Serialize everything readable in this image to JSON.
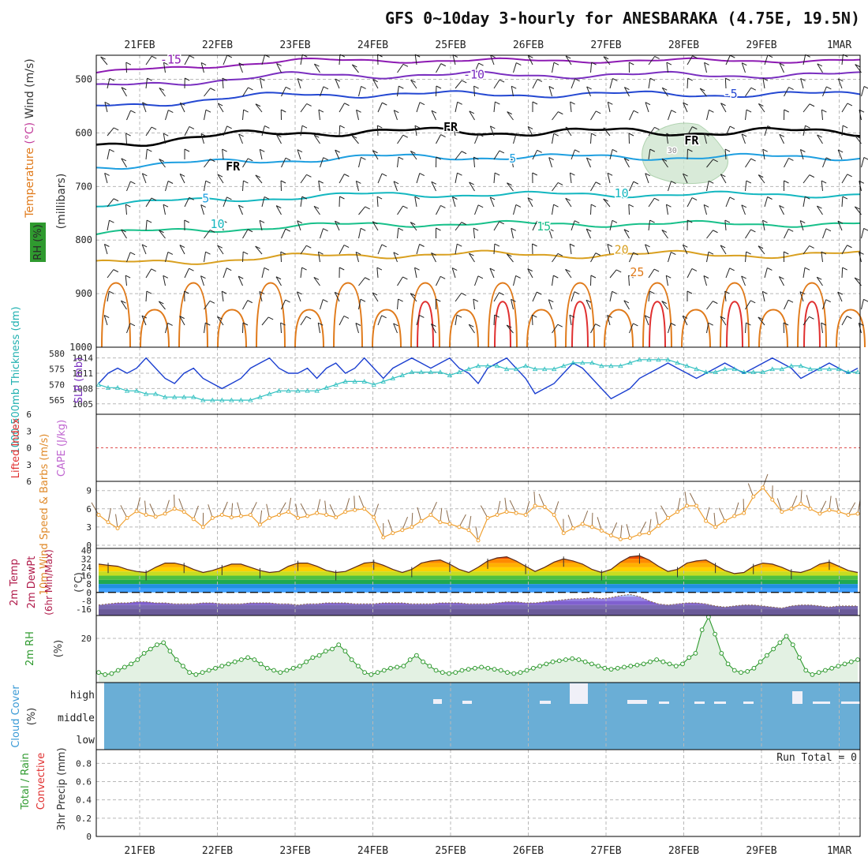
{
  "title": "GFS 0~10day 3-hourly for ANESBARAKA (4.75E, 19.5N)",
  "colors": {
    "temp_minus15": "#8d1ab3",
    "temp_minus10": "#7a2fc0",
    "temp_minus5": "#2448d2",
    "temp_5": "#1e9fe0",
    "temp_10": "#14b7c0",
    "temp_15": "#18c08a",
    "temp_20": "#d9a020",
    "temp_25": "#e07a1a",
    "temp_30": "#e03030",
    "rh_fill": "#cfe5cf",
    "slp_line": "#1b3fd0",
    "thickness_line": "#30c0c0",
    "wind_speed_line": "#f0a030",
    "cloud_fill": "#6aaed6",
    "rh2m_line": "#2f9a2f",
    "rh2m_fill": "#e3f1e3",
    "cape_zero_line": "#e05050"
  },
  "chart_data": [
    {
      "panel": "upper-air",
      "type": "contour",
      "title": "GFS 0~10day 3-hourly for ANESBARAKA (4.75E, 19.5N)",
      "ylabel_parts": [
        {
          "text": "RH (%)",
          "color": "#2a2a2a"
        },
        {
          "text": "Temperature",
          "color": "#e07a1a"
        },
        {
          "text": "(°C)",
          "color": "#c23c9a"
        },
        {
          "text": "Wind (m/s)",
          "color": "#333333"
        }
      ],
      "y_units_label": "(millibars)",
      "yticks": [
        500,
        600,
        700,
        800,
        900,
        1000
      ],
      "ylim": [
        1000,
        450
      ],
      "x_categories": [
        "21FEB",
        "22FEB",
        "23FEB",
        "24FEB",
        "25FEB",
        "26FEB",
        "27FEB",
        "28FEB",
        "29FEB",
        "1MAR"
      ],
      "contour_labels": [
        {
          "text": "-15",
          "level": -15,
          "day": 0.4,
          "p": 463
        },
        {
          "text": "-10",
          "level": -10,
          "day": 4.3,
          "p": 491
        },
        {
          "text": "-5",
          "level": -5,
          "day": 7.6,
          "p": 527
        },
        {
          "text": "FR",
          "level": 0,
          "day": 4.0,
          "p": 589
        },
        {
          "text": "FR",
          "level": 0,
          "day": 1.2,
          "p": 663
        },
        {
          "text": "FR",
          "level": 0,
          "day": 7.1,
          "p": 614
        },
        {
          "text": "5",
          "level": 5,
          "day": 4.8,
          "p": 648
        },
        {
          "text": "5",
          "level": 5,
          "day": 0.85,
          "p": 722
        },
        {
          "text": "10",
          "level": 10,
          "day": 6.2,
          "p": 713
        },
        {
          "text": "10",
          "level": 10,
          "day": 1.0,
          "p": 770
        },
        {
          "text": "15",
          "level": 15,
          "day": 5.2,
          "p": 775
        },
        {
          "text": "20",
          "level": 20,
          "day": 6.2,
          "p": 818
        },
        {
          "text": "25",
          "level": 25,
          "day": 6.4,
          "p": 860
        },
        {
          "text": "30",
          "level": 30,
          "day": 6.85,
          "p": 630
        }
      ]
    },
    {
      "panel": "slp-thickness",
      "type": "line",
      "left_ylabel": "1000-500mb Thickness (dm)",
      "right_ylabel": "SLP (mb)",
      "left_yticks": [
        565,
        570,
        575,
        580
      ],
      "right_yticks": [
        1005,
        1008,
        1011,
        1014
      ],
      "series": [
        {
          "name": "SLP (mb)",
          "values": [
            1009,
            1011,
            1012,
            1011,
            1012,
            1014,
            1012,
            1010,
            1009,
            1011,
            1012,
            1010,
            1009,
            1008,
            1009,
            1010,
            1012,
            1013,
            1014,
            1012,
            1011,
            1011,
            1012,
            1010,
            1012,
            1013,
            1011,
            1012,
            1014,
            1012,
            1010,
            1012,
            1013,
            1014,
            1013,
            1012,
            1013,
            1014,
            1012,
            1011,
            1009,
            1012,
            1013,
            1014,
            1012,
            1010,
            1007,
            1008,
            1009,
            1011,
            1013,
            1012,
            1010,
            1008,
            1006,
            1007,
            1008,
            1010,
            1011,
            1012,
            1013,
            1012,
            1011,
            1010,
            1011,
            1012,
            1013,
            1012,
            1011,
            1012,
            1013,
            1014,
            1013,
            1012,
            1010,
            1011,
            1012,
            1013,
            1012,
            1011,
            1012
          ]
        },
        {
          "name": "1000-500mb Thickness (dm)",
          "values": [
            570,
            569,
            569,
            568,
            568,
            567,
            567,
            566,
            566,
            566,
            566,
            565,
            565,
            565,
            565,
            565,
            565,
            566,
            567,
            568,
            568,
            568,
            568,
            568,
            569,
            570,
            571,
            571,
            571,
            570,
            571,
            572,
            573,
            574,
            574,
            574,
            574,
            573,
            574,
            575,
            576,
            576,
            576,
            575,
            575,
            576,
            575,
            575,
            575,
            576,
            577,
            577,
            577,
            576,
            576,
            576,
            577,
            578,
            578,
            578,
            578,
            577,
            576,
            575,
            574,
            574,
            575,
            575,
            574,
            574,
            574,
            575,
            575,
            576,
            576,
            575,
            575,
            575,
            575,
            574,
            574
          ]
        }
      ]
    },
    {
      "panel": "cape-li",
      "type": "line",
      "left_ylabel": "Lifted Index",
      "right_ylabel": "CAPE (J/kg)",
      "yticks": [
        -6,
        -3,
        0,
        3,
        6
      ],
      "ylim": [
        -6,
        6
      ],
      "series": [
        {
          "name": "Lifted Index",
          "values": [
            0
          ]
        }
      ]
    },
    {
      "panel": "10m-wind",
      "type": "line",
      "ylabel": "10m Wind Speed & Barbs (m/s)",
      "yticks": [
        0,
        3,
        6,
        9
      ],
      "ylim": [
        0,
        10
      ],
      "series": [
        {
          "name": "10m Wind Speed",
          "values": [
            5.0,
            3.8,
            2.8,
            4.5,
            5.6,
            5.0,
            4.7,
            5.2,
            6.0,
            5.5,
            4.3,
            3.0,
            4.5,
            5.0,
            4.6,
            4.8,
            5.0,
            3.4,
            4.5,
            5.0,
            5.5,
            4.5,
            4.8,
            5.3,
            5.0,
            4.6,
            5.5,
            5.8,
            6.0,
            4.6,
            1.3,
            2.0,
            2.5,
            3.0,
            4.0,
            5.0,
            3.8,
            3.5,
            3.0,
            2.5,
            0.8,
            4.5,
            5.0,
            5.5,
            5.3,
            5.0,
            6.5,
            6.3,
            5.0,
            2.0,
            2.8,
            3.5,
            3.0,
            2.4,
            1.6,
            1.0,
            1.2,
            1.8,
            2.0,
            3.2,
            4.5,
            5.5,
            6.5,
            6.5,
            4.0,
            3.0,
            4.0,
            4.8,
            5.3,
            8.0,
            9.5,
            7.5,
            5.5,
            6.0,
            6.8,
            6.0,
            5.2,
            5.8,
            5.5,
            5.0,
            5.2
          ]
        }
      ]
    },
    {
      "panel": "2m-temp",
      "type": "area",
      "ylabel": "2m Temp 2m DewPt (6hr Min/Max) (°C)",
      "yticks": [
        40,
        32,
        24,
        16,
        8,
        0,
        -8,
        -16
      ],
      "ylim": [
        -22,
        42
      ],
      "series": [
        {
          "name": "2m Temp",
          "values": [
            27,
            26,
            25,
            22,
            20,
            19,
            24,
            28,
            28,
            26,
            22,
            19,
            21,
            24,
            27,
            27,
            24,
            21,
            19,
            20,
            25,
            28,
            28,
            25,
            21,
            19,
            20,
            24,
            28,
            29,
            26,
            22,
            19,
            22,
            28,
            30,
            31,
            27,
            22,
            19,
            24,
            30,
            33,
            34,
            30,
            25,
            20,
            24,
            29,
            32,
            30,
            27,
            22,
            19,
            22,
            29,
            34,
            35,
            31,
            25,
            20,
            22,
            28,
            30,
            31,
            26,
            21,
            18,
            19,
            25,
            28,
            27,
            24,
            20,
            19,
            22,
            27,
            29,
            25,
            21,
            19
          ]
        },
        {
          "name": "2m DewPt",
          "values": [
            -12,
            -11,
            -10,
            -10,
            -9,
            -9,
            -10,
            -10,
            -11,
            -11,
            -11,
            -10,
            -10,
            -11,
            -11,
            -11,
            -10,
            -10,
            -10,
            -11,
            -11,
            -12,
            -11,
            -11,
            -10,
            -10,
            -10,
            -11,
            -11,
            -11,
            -10,
            -10,
            -10,
            -11,
            -11,
            -11,
            -10,
            -10,
            -10,
            -11,
            -11,
            -11,
            -10,
            -9,
            -9,
            -10,
            -10,
            -9,
            -8,
            -7,
            -6,
            -6,
            -5,
            -6,
            -5,
            -3,
            -2,
            -4,
            -8,
            -11,
            -12,
            -11,
            -10,
            -10,
            -11,
            -13,
            -14,
            -13,
            -12,
            -12,
            -13,
            -14,
            -15,
            -13,
            -12,
            -12,
            -13,
            -14,
            -13,
            -13,
            -13
          ]
        }
      ]
    },
    {
      "panel": "2m-rh",
      "type": "area",
      "ylabel": "2m RH (%)",
      "yticks": [
        20
      ],
      "ylim": [
        0,
        30
      ],
      "series": [
        {
          "name": "2m RH",
          "values": [
            4,
            3,
            3.5,
            5,
            6.5,
            8,
            10,
            13,
            15,
            17,
            18,
            14,
            10,
            7,
            4,
            3,
            4,
            5,
            6,
            7,
            8,
            9,
            10,
            11,
            10,
            8,
            6,
            5,
            4,
            5,
            6,
            7,
            9,
            11,
            12,
            14,
            15,
            17,
            14,
            10,
            7,
            4,
            3,
            4,
            5,
            6,
            6.5,
            7,
            10,
            12,
            9,
            7,
            5,
            4,
            3.5,
            4,
            5,
            5.5,
            6,
            6.5,
            6,
            5.5,
            5,
            4,
            3.5,
            4,
            5,
            6,
            7,
            8,
            9,
            9.5,
            10,
            10.5,
            10,
            9,
            8,
            7,
            6,
            5.5,
            6,
            6.5,
            7,
            7.5,
            8,
            9,
            10,
            9,
            8,
            7,
            8,
            11,
            13,
            24,
            30,
            22,
            13,
            8,
            5,
            4,
            4.5,
            6,
            9,
            12,
            15,
            18,
            21,
            17,
            11,
            5,
            3,
            4,
            5,
            6,
            7,
            8,
            9,
            10
          ]
        }
      ]
    },
    {
      "panel": "cloud-cover",
      "type": "area",
      "ylabel": "Cloud Cover (%)",
      "ytick_labels": [
        "high",
        "middle",
        "low"
      ]
    },
    {
      "panel": "precip",
      "type": "bar",
      "left_ylabel_parts": [
        {
          "text": "Total / Rain",
          "color": "#2f9a2f"
        },
        {
          "text": "Convective",
          "color": "#e03030"
        }
      ],
      "ylabel": "3hr Precip (mm)",
      "yticks": [
        0,
        0.2,
        0.4,
        0.6,
        0.8
      ],
      "yticks_text": [
        "0",
        "0.2",
        "0.4",
        "0.6",
        "0.8"
      ],
      "ylim": [
        0,
        0.95
      ],
      "run_total": "Run Total = 0",
      "x_categories": [
        "21FEB",
        "22FEB",
        "23FEB",
        "24FEB",
        "25FEB",
        "26FEB",
        "27FEB",
        "28FEB",
        "29FEB",
        "1MAR"
      ],
      "series": [
        {
          "name": "Total / Rain",
          "values": [
            0
          ]
        },
        {
          "name": "Convective",
          "values": [
            0
          ]
        }
      ]
    }
  ]
}
